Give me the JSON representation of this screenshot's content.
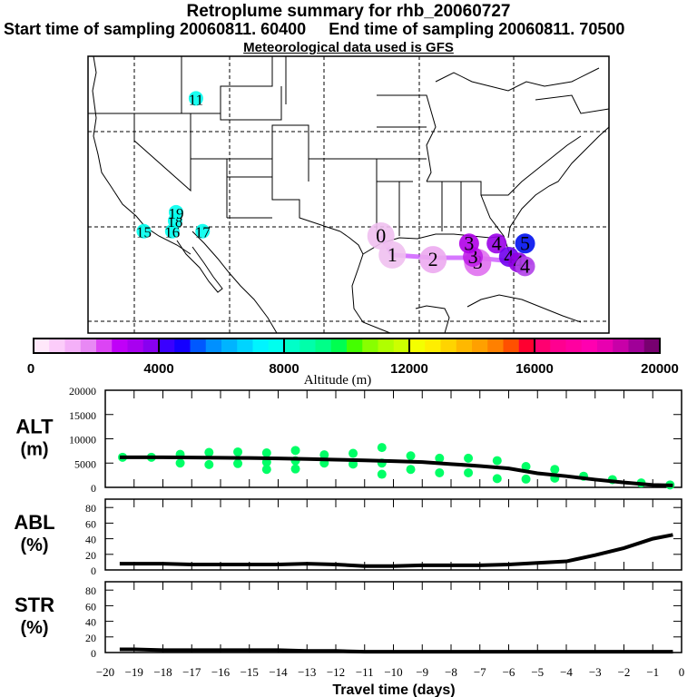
{
  "header": {
    "title": "Retroplume summary for rhb_20060727",
    "start_label": "Start time of sampling 20060811. 60400",
    "end_label": "End time of sampling 20060811. 70500",
    "met_label": "Meteorological data used is GFS"
  },
  "colors": {
    "alt_dots": "#00ff66",
    "line": "#000000",
    "trajectory": "#cc55ff"
  },
  "map": {
    "labels": [
      {
        "text": "11",
        "lon": -113.5,
        "lat": 43.5,
        "color": "#00ffee"
      },
      {
        "text": "15",
        "lon": -119.0,
        "lat": 29.5,
        "color": "#00ffee"
      },
      {
        "text": "16",
        "lon": -116.0,
        "lat": 29.5,
        "color": "#00ffee"
      },
      {
        "text": "18",
        "lon": -115.7,
        "lat": 30.6,
        "color": "#00ffee"
      },
      {
        "text": "19",
        "lon": -115.6,
        "lat": 31.5,
        "color": "#00ffee"
      },
      {
        "text": "17",
        "lon": -112.8,
        "lat": 29.5,
        "color": "#00ffee"
      },
      {
        "text": "0",
        "lon": -94.0,
        "lat": 29.0,
        "color": "#f0c0f0"
      },
      {
        "text": "1",
        "lon": -92.8,
        "lat": 27.0,
        "color": "#f0c0f0"
      },
      {
        "text": "2",
        "lon": -88.5,
        "lat": 26.5,
        "color": "#ecaaf0"
      },
      {
        "text": "3",
        "lon": -83.8,
        "lat": 26.2,
        "color": "#e070f0"
      },
      {
        "text": "3",
        "lon": -84.3,
        "lat": 26.8,
        "color": "#c020e8"
      },
      {
        "text": "3",
        "lon": -84.7,
        "lat": 28.2,
        "color": "#b000e8"
      },
      {
        "text": "4",
        "lon": -81.8,
        "lat": 28.2,
        "color": "#9a00e8"
      },
      {
        "text": "5",
        "lon": -78.8,
        "lat": 28.2,
        "color": "#0010ee"
      },
      {
        "text": "4",
        "lon": -80.5,
        "lat": 26.8,
        "color": "#7000ee"
      },
      {
        "text": "4",
        "lon": -79.5,
        "lat": 26.2,
        "color": "#9000e0"
      },
      {
        "text": "4",
        "lon": -78.8,
        "lat": 25.8,
        "color": "#b040e8"
      }
    ],
    "trajectory": [
      {
        "lon": -94.0,
        "lat": 29.0
      },
      {
        "lon": -92.8,
        "lat": 27.0
      },
      {
        "lon": -88.5,
        "lat": 26.7
      },
      {
        "lon": -84.0,
        "lat": 26.7
      },
      {
        "lon": -81.0,
        "lat": 26.4
      },
      {
        "lon": -78.0,
        "lat": 26.2
      }
    ]
  },
  "colorbar": {
    "tick_labels": [
      "0",
      "4000",
      "8000",
      "12000",
      "16000",
      "20000"
    ],
    "label": "Altitude (m)",
    "range": [
      0,
      20000
    ],
    "colors": [
      "#ffe8fa",
      "#fcccfa",
      "#f4b0f8",
      "#e888f4",
      "#dc44f4",
      "#c000f8",
      "#a800f0",
      "#8800f0",
      "#3a00ff",
      "#1400ff",
      "#0058ff",
      "#0090ff",
      "#00b4ff",
      "#00d4ff",
      "#00f4ff",
      "#00ffee",
      "#00ffc8",
      "#00ffaa",
      "#00ff88",
      "#00ff50",
      "#44ff00",
      "#88ff00",
      "#b0ff00",
      "#ccff00",
      "#f4ff00",
      "#ffee00",
      "#ffd400",
      "#ffb800",
      "#ffa000",
      "#ff8000",
      "#ff5000",
      "#ff0030",
      "#ff0070",
      "#ff0090",
      "#ff00a0",
      "#ff00b0",
      "#e800b0",
      "#c800a8",
      "#a00098",
      "#780070"
    ]
  },
  "chart_data": [
    {
      "type": "line",
      "panel": "ALT",
      "ylabel": "ALT\n(m)",
      "ylabel_lines": [
        "ALT",
        "(m)"
      ],
      "ylim": [
        0,
        20000
      ],
      "yticks": [
        "20000",
        "15000",
        "10000",
        "5000",
        "0"
      ],
      "xlim": [
        -20,
        0
      ],
      "x": [
        -19.5,
        -19,
        -18,
        -17,
        -16,
        -15,
        -14,
        -13,
        -12,
        -11,
        -10,
        -9,
        -8,
        -7,
        -6,
        -5,
        -4,
        -3,
        -2,
        -1,
        -0.3
      ],
      "values": [
        6200,
        6200,
        6200,
        6150,
        6100,
        6050,
        5950,
        5850,
        5700,
        5550,
        5400,
        5200,
        4800,
        4400,
        3900,
        2900,
        2300,
        1600,
        1000,
        500,
        400
      ],
      "scatter": [
        {
          "x": -19.4,
          "y": 6200
        },
        {
          "x": -18.4,
          "y": 6200
        },
        {
          "x": -17.4,
          "y": 6800
        },
        {
          "x": -17.4,
          "y": 5000
        },
        {
          "x": -16.4,
          "y": 7200
        },
        {
          "x": -16.4,
          "y": 4700
        },
        {
          "x": -15.4,
          "y": 7300
        },
        {
          "x": -15.4,
          "y": 4900
        },
        {
          "x": -14.4,
          "y": 7100
        },
        {
          "x": -14.4,
          "y": 5200
        },
        {
          "x": -14.4,
          "y": 3700
        },
        {
          "x": -13.4,
          "y": 7600
        },
        {
          "x": -13.4,
          "y": 5500
        },
        {
          "x": -13.4,
          "y": 3800
        },
        {
          "x": -12.4,
          "y": 6700
        },
        {
          "x": -12.4,
          "y": 5000
        },
        {
          "x": -11.4,
          "y": 7000
        },
        {
          "x": -11.4,
          "y": 4800
        },
        {
          "x": -10.4,
          "y": 8200
        },
        {
          "x": -10.4,
          "y": 5000
        },
        {
          "x": -10.4,
          "y": 2700
        },
        {
          "x": -9.4,
          "y": 6500
        },
        {
          "x": -9.4,
          "y": 3700
        },
        {
          "x": -8.4,
          "y": 6000
        },
        {
          "x": -8.4,
          "y": 3000
        },
        {
          "x": -7.4,
          "y": 6000
        },
        {
          "x": -7.4,
          "y": 3000
        },
        {
          "x": -6.4,
          "y": 5500
        },
        {
          "x": -6.4,
          "y": 1800
        },
        {
          "x": -5.4,
          "y": 4300
        },
        {
          "x": -5.4,
          "y": 1700
        },
        {
          "x": -4.4,
          "y": 3700
        },
        {
          "x": -4.4,
          "y": 1900
        },
        {
          "x": -3.4,
          "y": 2300
        },
        {
          "x": -2.4,
          "y": 1600
        },
        {
          "x": -1.4,
          "y": 900
        },
        {
          "x": -0.4,
          "y": 500
        }
      ]
    },
    {
      "type": "line",
      "panel": "ABL",
      "ylabel_lines": [
        "ABL",
        "(%)"
      ],
      "ylim": [
        0,
        100
      ],
      "yticks": [
        "80",
        "60",
        "40",
        "20",
        "0"
      ],
      "xlim": [
        -20,
        0
      ],
      "x": [
        -19.5,
        -19,
        -18,
        -17,
        -16,
        -15,
        -14,
        -13,
        -12,
        -11,
        -10,
        -9,
        -8,
        -7,
        -6,
        -5,
        -4,
        -3,
        -2,
        -1,
        -0.3
      ],
      "values": [
        8,
        8,
        8,
        7,
        7,
        7,
        7,
        8,
        7,
        5,
        5,
        6,
        6,
        6,
        7,
        9,
        11,
        19,
        28,
        40,
        45
      ]
    },
    {
      "type": "line",
      "panel": "STR",
      "ylabel_lines": [
        "STR",
        "(%)"
      ],
      "ylim": [
        0,
        100
      ],
      "yticks": [
        "80",
        "60",
        "40",
        "20",
        "0"
      ],
      "xlim": [
        -20,
        0
      ],
      "xticks": [
        "−20",
        "−19",
        "−18",
        "−17",
        "−16",
        "−15",
        "−14",
        "−13",
        "−12",
        "−11",
        "−10",
        "−9",
        "−8",
        "−7",
        "−6",
        "−5",
        "−4",
        "−3",
        "−2",
        "−1",
        "0"
      ],
      "xlabel": "Travel time (days)",
      "x": [
        -19.5,
        -19,
        -18,
        -17,
        -16,
        -15,
        -14,
        -13,
        -12,
        -11,
        -10,
        -9,
        -8,
        -7,
        -6,
        -5,
        -4,
        -3,
        -2,
        -1,
        -0.3
      ],
      "values": [
        4,
        4,
        3,
        3,
        3,
        3,
        3,
        2,
        2,
        1,
        1,
        1,
        1,
        1,
        1,
        1,
        1,
        1,
        1,
        1,
        1
      ]
    }
  ]
}
